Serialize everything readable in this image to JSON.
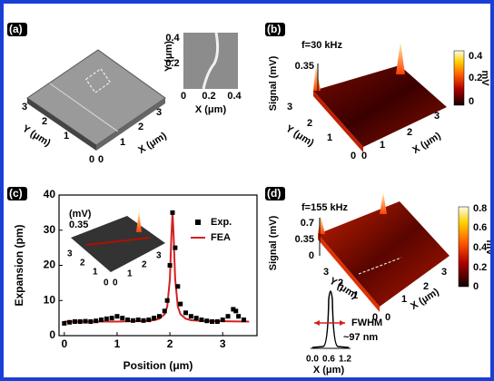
{
  "panels": {
    "a": {
      "label": "(a)",
      "surface": {
        "y_axis": {
          "label": "Y (μm)",
          "ticks": [
            "3",
            "2",
            "1",
            "0"
          ]
        },
        "x_axis": {
          "label": "X (μm)",
          "ticks": [
            "0",
            "1",
            "2",
            "3"
          ]
        }
      },
      "inset": {
        "ylabel": "Y (μm)",
        "yticks": [
          "0.4",
          "0.2"
        ],
        "xlabel": "X (μm)",
        "xticks": [
          "0",
          "0.2",
          "0.4"
        ]
      }
    },
    "b": {
      "label": "(b)",
      "frequency": "f=30 kHz",
      "zlabel": "Signal (mV)",
      "zticks": [
        "0.35"
      ],
      "y_axis": {
        "label": "Y (μm)",
        "ticks": [
          "3",
          "2",
          "1",
          "0"
        ]
      },
      "x_axis": {
        "label": "X (μm)",
        "ticks": [
          "0",
          "1",
          "2",
          "3"
        ]
      },
      "colorbar": {
        "ticks": [
          "0.4",
          "0.2",
          "0"
        ],
        "unit": "mV"
      }
    },
    "c_inset": {
      "zlabel": "(mV)",
      "zticks": [
        "0.35"
      ],
      "y_ticks": [
        "3",
        "2",
        "1",
        "0"
      ],
      "x_ticks": [
        "0",
        "1",
        "2",
        "3"
      ]
    },
    "d": {
      "label": "(d)",
      "frequency": "f=155 kHz",
      "zlabel": "Signal (mV)",
      "zticks": [
        "0.7",
        "0.35",
        "0"
      ],
      "y_axis": {
        "label": "Y (μm)",
        "ticks": [
          "3",
          "2",
          "1",
          "0"
        ]
      },
      "x_axis": {
        "label": "X (μm)",
        "ticks": [
          "0",
          "1",
          "2",
          "3"
        ]
      },
      "colorbar": {
        "ticks": [
          "0.8",
          "0.6",
          "0.4",
          "0.2",
          "0"
        ],
        "unit": "mV"
      },
      "profile": {
        "annotation": "FWHM",
        "width": "~97 nm",
        "xticks": [
          "0.0",
          "0.6",
          "1.2"
        ],
        "xlabel": "X (μm)"
      }
    }
  },
  "chart_data": {
    "type": "scatter",
    "label": "(c)",
    "xlabel": "Position (μm)",
    "ylabel": "Expansion (pm)",
    "xlim": [
      -0.1,
      3.65
    ],
    "ylim": [
      0,
      40
    ],
    "xticks": [
      0,
      1,
      2,
      3
    ],
    "yticks": [
      0,
      10,
      20,
      30,
      40
    ],
    "legend": "upper right",
    "series": [
      {
        "name": "Exp.",
        "color": "#000000",
        "marker": "square",
        "x": [
          0.0,
          0.1,
          0.2,
          0.3,
          0.4,
          0.5,
          0.6,
          0.7,
          0.8,
          0.9,
          1.0,
          1.1,
          1.2,
          1.3,
          1.4,
          1.5,
          1.6,
          1.7,
          1.8,
          1.9,
          1.95,
          2.0,
          2.05,
          2.1,
          2.15,
          2.2,
          2.3,
          2.4,
          2.5,
          2.6,
          2.7,
          2.8,
          2.9,
          3.0,
          3.1,
          3.2,
          3.25,
          3.3,
          3.4
        ],
        "values": [
          3.5,
          3.8,
          4.0,
          4.0,
          4.1,
          4.0,
          4.2,
          4.5,
          4.8,
          5.0,
          5.5,
          5.0,
          4.5,
          4.3,
          4.5,
          4.3,
          4.5,
          5.0,
          5.5,
          7.0,
          10,
          20,
          35,
          25,
          14,
          9,
          6.5,
          5.5,
          5.0,
          4.5,
          4.2,
          4.0,
          4.0,
          4.5,
          5.5,
          7.5,
          7.0,
          5.5,
          4.5
        ]
      },
      {
        "name": "FEA",
        "color": "#d42020",
        "marker": "line",
        "x": [
          0,
          0.5,
          1.0,
          1.5,
          1.7,
          1.8,
          1.9,
          1.95,
          2.0,
          2.03,
          2.05,
          2.07,
          2.1,
          2.15,
          2.2,
          2.3,
          2.4,
          2.6,
          3.0,
          3.5
        ],
        "values": [
          4.0,
          4.0,
          4.0,
          4.2,
          4.4,
          4.8,
          6.1,
          8.3,
          16.1,
          28.8,
          35,
          28.8,
          16.1,
          8.3,
          6.1,
          4.8,
          4.4,
          4.2,
          4.1,
          4.0
        ]
      }
    ]
  }
}
